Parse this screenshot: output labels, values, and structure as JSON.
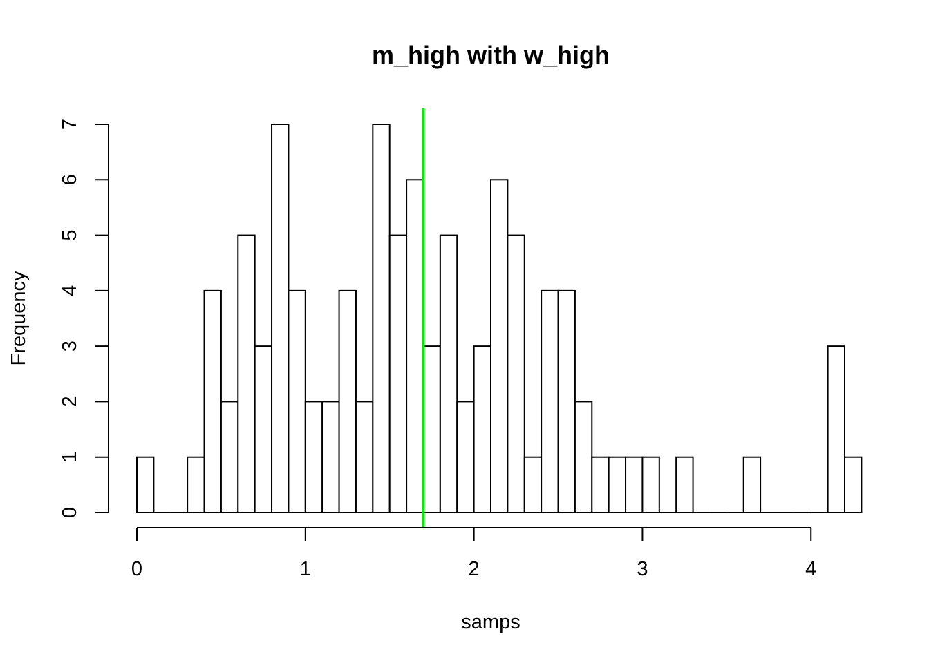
{
  "chart_data": {
    "type": "bar",
    "subtype": "histogram",
    "title": "m_high with w_high",
    "xlabel": "samps",
    "ylabel": "Frequency",
    "bin_width": 0.1,
    "bin_start": 0.0,
    "counts": [
      1,
      0,
      0,
      1,
      4,
      2,
      5,
      3,
      7,
      4,
      2,
      2,
      4,
      2,
      7,
      5,
      6,
      3,
      5,
      2,
      3,
      6,
      5,
      1,
      4,
      4,
      2,
      1,
      1,
      1,
      1,
      0,
      1,
      0,
      0,
      0,
      1,
      0,
      0,
      0,
      0,
      3,
      1
    ],
    "xlim": [
      0,
      4.2
    ],
    "ylim": [
      0,
      7
    ],
    "x_ticks": [
      "0",
      "1",
      "2",
      "3",
      "4"
    ],
    "x_tick_values": [
      0,
      1,
      2,
      3,
      4
    ],
    "y_ticks": [
      "0",
      "1",
      "2",
      "3",
      "4",
      "5",
      "6",
      "7"
    ],
    "y_tick_values": [
      0,
      1,
      2,
      3,
      4,
      5,
      6,
      7
    ],
    "vline": {
      "x": 1.7,
      "color": "#00ee00"
    },
    "bar_fill": "#ffffff",
    "bar_stroke": "#000000",
    "grid": false,
    "legend": "none"
  }
}
